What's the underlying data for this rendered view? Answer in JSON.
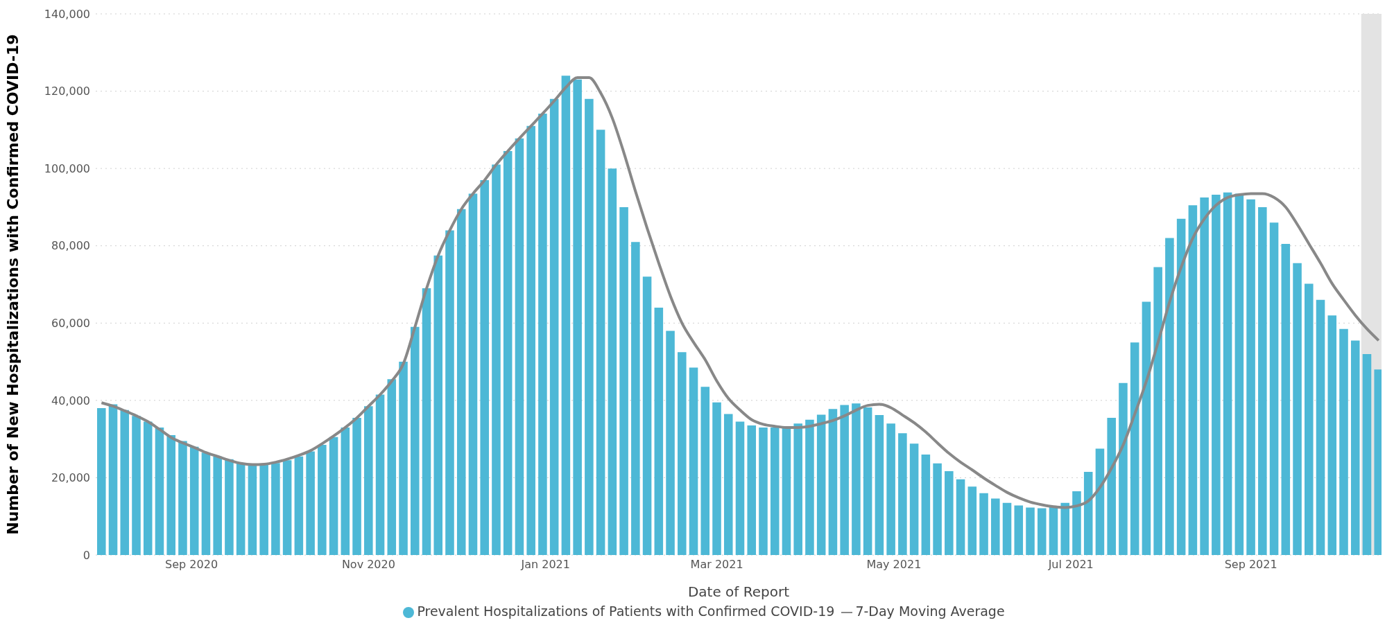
{
  "chart_data": {
    "type": "bar",
    "xlabel": "Date of Report",
    "ylabel": "Number of New Hospitalizations with Confirmed COVID-19",
    "x": [
      "2020-08-01",
      "2020-08-05",
      "2020-08-09",
      "2020-08-13",
      "2020-08-17",
      "2020-08-21",
      "2020-08-25",
      "2020-08-29",
      "2020-09-02",
      "2020-09-06",
      "2020-09-10",
      "2020-09-14",
      "2020-09-18",
      "2020-09-22",
      "2020-09-26",
      "2020-09-30",
      "2020-10-04",
      "2020-10-08",
      "2020-10-12",
      "2020-10-16",
      "2020-10-20",
      "2020-10-24",
      "2020-10-28",
      "2020-11-01",
      "2020-11-05",
      "2020-11-09",
      "2020-11-13",
      "2020-11-17",
      "2020-11-21",
      "2020-11-25",
      "2020-11-29",
      "2020-12-03",
      "2020-12-07",
      "2020-12-11",
      "2020-12-15",
      "2020-12-19",
      "2020-12-23",
      "2020-12-27",
      "2020-12-31",
      "2021-01-04",
      "2021-01-08",
      "2021-01-12",
      "2021-01-16",
      "2021-01-20",
      "2021-01-24",
      "2021-01-28",
      "2021-02-01",
      "2021-02-05",
      "2021-02-09",
      "2021-02-13",
      "2021-02-17",
      "2021-02-21",
      "2021-02-25",
      "2021-03-01",
      "2021-03-05",
      "2021-03-09",
      "2021-03-13",
      "2021-03-17",
      "2021-03-21",
      "2021-03-25",
      "2021-03-29",
      "2021-04-02",
      "2021-04-06",
      "2021-04-10",
      "2021-04-14",
      "2021-04-18",
      "2021-04-22",
      "2021-04-26",
      "2021-04-30",
      "2021-05-04",
      "2021-05-08",
      "2021-05-12",
      "2021-05-16",
      "2021-05-20",
      "2021-05-24",
      "2021-05-28",
      "2021-06-01",
      "2021-06-05",
      "2021-06-09",
      "2021-06-13",
      "2021-06-17",
      "2021-06-21",
      "2021-06-25",
      "2021-06-29",
      "2021-07-03",
      "2021-07-07",
      "2021-07-11",
      "2021-07-15",
      "2021-07-19",
      "2021-07-23",
      "2021-07-27",
      "2021-07-31",
      "2021-08-04",
      "2021-08-08",
      "2021-08-12",
      "2021-08-16",
      "2021-08-20",
      "2021-08-24",
      "2021-08-28",
      "2021-09-01",
      "2021-09-05",
      "2021-09-09",
      "2021-09-13",
      "2021-09-17",
      "2021-09-21",
      "2021-09-25",
      "2021-09-29",
      "2021-10-03",
      "2021-10-07",
      "2021-10-11",
      "2021-10-15"
    ],
    "series": [
      {
        "name": "Prevalent Hospitalizations of Patients with Confirmed COVID-19",
        "color": "#4db8d6",
        "values": [
          38000,
          39000,
          37500,
          36000,
          34500,
          33000,
          31000,
          29500,
          28000,
          26500,
          25500,
          24800,
          23800,
          23300,
          23300,
          23800,
          24500,
          25500,
          26800,
          28500,
          30500,
          33000,
          35500,
          38500,
          41500,
          45500,
          50000,
          59000,
          69000,
          77500,
          84000,
          89500,
          93500,
          97000,
          101000,
          104500,
          107800,
          111000,
          114200,
          118000,
          124000,
          123000,
          118000,
          110000,
          100000,
          90000,
          81000,
          72000,
          64000,
          58000,
          52500,
          48500,
          43500,
          39500,
          36500,
          34500,
          33500,
          33000,
          33000,
          33300,
          34000,
          35000,
          36300,
          37800,
          38800,
          39200,
          38200,
          36200,
          34000,
          31500,
          28800,
          26000,
          23700,
          21700,
          19600,
          17700,
          16000,
          14600,
          13500,
          12800,
          12300,
          12100,
          12400,
          13500,
          16500,
          21500,
          27500,
          35500,
          44500,
          55000,
          65500,
          74500,
          82000,
          87000,
          90500,
          92500,
          93200,
          93800,
          93500,
          92000,
          90000,
          86000,
          80500,
          75500,
          70200,
          66000,
          62000,
          58500,
          55500,
          52000,
          48000
        ]
      },
      {
        "name": "7-Day Moving Average",
        "type": "line",
        "color": "#888888",
        "values": [
          39400,
          38500,
          37300,
          36000,
          34500,
          32500,
          30400,
          29000,
          27800,
          26500,
          25500,
          24500,
          23700,
          23400,
          23500,
          24000,
          24800,
          25800,
          27000,
          28800,
          30800,
          33000,
          35500,
          38500,
          41500,
          45000,
          49500,
          59000,
          69000,
          77500,
          84000,
          89500,
          93500,
          97000,
          101000,
          104500,
          107800,
          111000,
          114200,
          117500,
          121000,
          123500,
          123500,
          119500,
          113000,
          104000,
          94000,
          84500,
          75500,
          67000,
          60000,
          55000,
          50500,
          45000,
          40500,
          37500,
          35000,
          33800,
          33300,
          33000,
          33000,
          33300,
          34000,
          34800,
          36000,
          37500,
          38700,
          39000,
          38100,
          36200,
          34200,
          31800,
          29000,
          26300,
          24000,
          22000,
          19900,
          18000,
          16200,
          14800,
          13700,
          13000,
          12500,
          12300,
          12700,
          14000,
          17500,
          22500,
          28500,
          36500,
          45000,
          55000,
          65500,
          74500,
          82000,
          87000,
          90500,
          92500,
          93200,
          93500,
          93500,
          92500,
          90000,
          85500,
          80500,
          75500,
          70200,
          66000,
          62000,
          58500,
          55500
        ]
      }
    ],
    "xlim": [
      "2020-07-30",
      "2021-10-16"
    ],
    "xticks": [
      {
        "value": "2020-09-01",
        "label": "Sep 2020"
      },
      {
        "value": "2020-11-01",
        "label": "Nov 2020"
      },
      {
        "value": "2021-01-01",
        "label": "Jan 2021"
      },
      {
        "value": "2021-03-01",
        "label": "Mar 2021"
      },
      {
        "value": "2021-05-01",
        "label": "May 2021"
      },
      {
        "value": "2021-07-01",
        "label": "Jul 2021"
      },
      {
        "value": "2021-09-01",
        "label": "Sep 2021"
      }
    ],
    "ylim": [
      0,
      140000
    ],
    "yticks": [
      {
        "value": 0,
        "label": "0"
      },
      {
        "value": 20000,
        "label": "20,000"
      },
      {
        "value": 40000,
        "label": "40,000"
      },
      {
        "value": 60000,
        "label": "60,000"
      },
      {
        "value": 80000,
        "label": "80,000"
      },
      {
        "value": 100000,
        "label": "100,000"
      },
      {
        "value": 120000,
        "label": "120,000"
      },
      {
        "value": 140000,
        "label": "140,000"
      }
    ],
    "bands": [
      {
        "axis": "x",
        "from": "2021-10-09",
        "to": "2021-10-16",
        "color": "#e3e3e3"
      }
    ],
    "grid": "y",
    "legend": "bottom",
    "marker": "none",
    "line_style": "solid"
  }
}
